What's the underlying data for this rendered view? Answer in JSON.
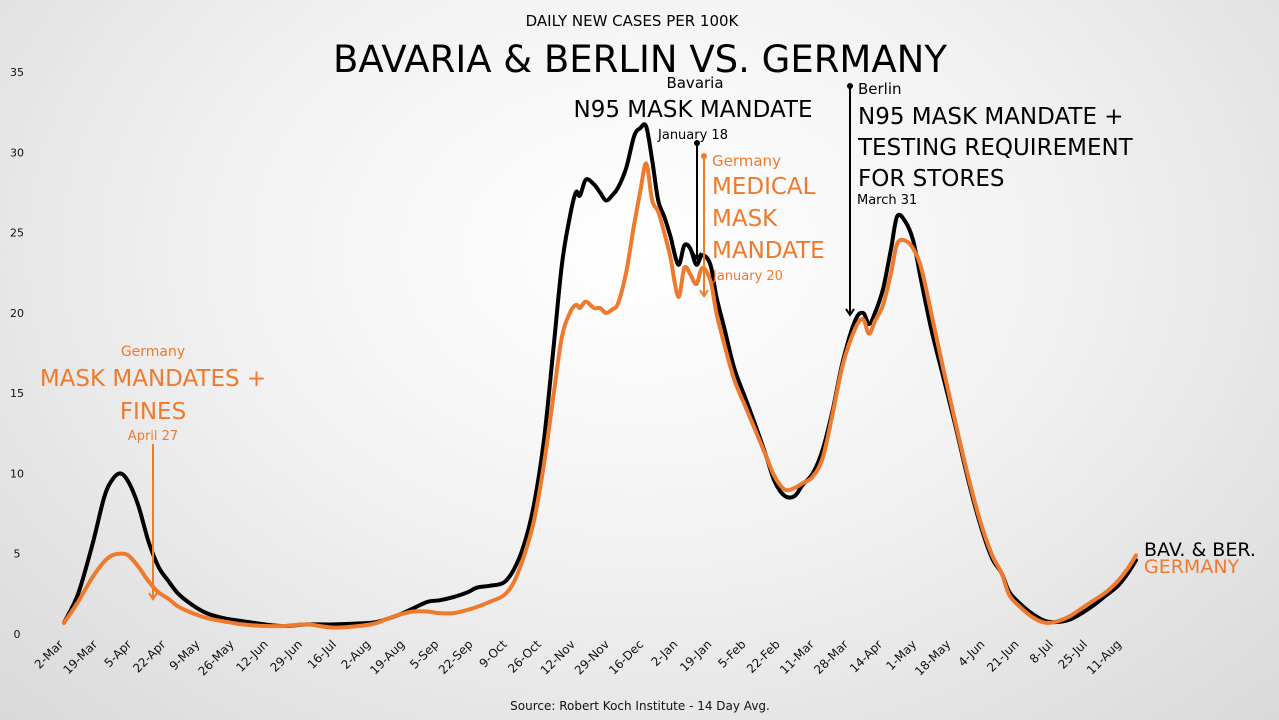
{
  "chart_data": {
    "type": "line",
    "subtitle": "DAILY NEW CASES PER 100K",
    "title": "BAVARIA & BERLIN VS. GERMANY",
    "source": "Source: Robert Koch Institute - 14 Day Avg.",
    "ylim": [
      0,
      35
    ],
    "yticks": [
      0,
      5,
      10,
      15,
      20,
      25,
      30,
      35
    ],
    "x_start": "2020-03-02",
    "x_end": "2021-08-18",
    "xticks": [
      {
        "date": "2020-03-02",
        "label": "2-Mar"
      },
      {
        "date": "2020-03-19",
        "label": "19-Mar"
      },
      {
        "date": "2020-04-05",
        "label": "5-Apr"
      },
      {
        "date": "2020-04-22",
        "label": "22-Apr"
      },
      {
        "date": "2020-05-09",
        "label": "9-May"
      },
      {
        "date": "2020-05-26",
        "label": "26-May"
      },
      {
        "date": "2020-06-12",
        "label": "12-Jun"
      },
      {
        "date": "2020-06-29",
        "label": "29-Jun"
      },
      {
        "date": "2020-07-16",
        "label": "16-Jul"
      },
      {
        "date": "2020-08-02",
        "label": "2-Aug"
      },
      {
        "date": "2020-08-19",
        "label": "19-Aug"
      },
      {
        "date": "2020-09-05",
        "label": "5-Sep"
      },
      {
        "date": "2020-09-22",
        "label": "22-Sep"
      },
      {
        "date": "2020-10-09",
        "label": "9-Oct"
      },
      {
        "date": "2020-10-26",
        "label": "26-Oct"
      },
      {
        "date": "2020-11-12",
        "label": "12-Nov"
      },
      {
        "date": "2020-11-29",
        "label": "29-Nov"
      },
      {
        "date": "2020-12-16",
        "label": "16-Dec"
      },
      {
        "date": "2021-01-02",
        "label": "2-Jan"
      },
      {
        "date": "2021-01-19",
        "label": "19-Jan"
      },
      {
        "date": "2021-02-05",
        "label": "5-Feb"
      },
      {
        "date": "2021-02-22",
        "label": "22-Feb"
      },
      {
        "date": "2021-03-11",
        "label": "11-Mar"
      },
      {
        "date": "2021-03-28",
        "label": "28-Mar"
      },
      {
        "date": "2021-04-14",
        "label": "14-Apr"
      },
      {
        "date": "2021-05-01",
        "label": "1-May"
      },
      {
        "date": "2021-05-18",
        "label": "18-May"
      },
      {
        "date": "2021-06-04",
        "label": "4-Jun"
      },
      {
        "date": "2021-06-21",
        "label": "21-Jun"
      },
      {
        "date": "2021-07-08",
        "label": "8-Jul"
      },
      {
        "date": "2021-07-25",
        "label": "25-Jul"
      },
      {
        "date": "2021-08-11",
        "label": "11-Aug"
      }
    ],
    "series": [
      {
        "name": "BAV. & BER.",
        "color": "#000000",
        "points": [
          [
            "2020-03-02",
            0.7
          ],
          [
            "2020-03-09",
            2.5
          ],
          [
            "2020-03-16",
            5.5
          ],
          [
            "2020-03-22",
            8.5
          ],
          [
            "2020-03-26",
            9.6
          ],
          [
            "2020-03-30",
            10.0
          ],
          [
            "2020-04-03",
            9.5
          ],
          [
            "2020-04-08",
            8.0
          ],
          [
            "2020-04-13",
            5.8
          ],
          [
            "2020-04-18",
            4.2
          ],
          [
            "2020-04-23",
            3.3
          ],
          [
            "2020-04-28",
            2.5
          ],
          [
            "2020-05-05",
            1.8
          ],
          [
            "2020-05-12",
            1.3
          ],
          [
            "2020-05-20",
            1.0
          ],
          [
            "2020-05-30",
            0.8
          ],
          [
            "2020-06-10",
            0.6
          ],
          [
            "2020-06-20",
            0.5
          ],
          [
            "2020-07-01",
            0.6
          ],
          [
            "2020-07-15",
            0.6
          ],
          [
            "2020-08-02",
            0.7
          ],
          [
            "2020-08-09",
            0.9
          ],
          [
            "2020-08-16",
            1.2
          ],
          [
            "2020-08-23",
            1.6
          ],
          [
            "2020-08-30",
            2.0
          ],
          [
            "2020-09-05",
            2.1
          ],
          [
            "2020-09-12",
            2.3
          ],
          [
            "2020-09-19",
            2.6
          ],
          [
            "2020-09-24",
            2.9
          ],
          [
            "2020-09-30",
            3.0
          ],
          [
            "2020-10-07",
            3.2
          ],
          [
            "2020-10-12",
            4.0
          ],
          [
            "2020-10-17",
            5.5
          ],
          [
            "2020-10-22",
            8.0
          ],
          [
            "2020-10-27",
            12.0
          ],
          [
            "2020-11-01",
            18.0
          ],
          [
            "2020-11-05",
            23.0
          ],
          [
            "2020-11-09",
            26.0
          ],
          [
            "2020-11-12",
            27.5
          ],
          [
            "2020-11-14",
            27.3
          ],
          [
            "2020-11-17",
            28.3
          ],
          [
            "2020-11-21",
            28.0
          ],
          [
            "2020-11-24",
            27.5
          ],
          [
            "2020-11-27",
            27.0
          ],
          [
            "2020-11-30",
            27.3
          ],
          [
            "2020-12-03",
            27.8
          ],
          [
            "2020-12-07",
            29.0
          ],
          [
            "2020-12-11",
            31.0
          ],
          [
            "2020-12-14",
            31.5
          ],
          [
            "2020-12-17",
            31.6
          ],
          [
            "2020-12-20",
            29.5
          ],
          [
            "2020-12-23",
            27.0
          ],
          [
            "2020-12-26",
            26.0
          ],
          [
            "2020-12-29",
            24.8
          ],
          [
            "2021-01-02",
            23.0
          ],
          [
            "2021-01-05",
            24.2
          ],
          [
            "2021-01-08",
            24.0
          ],
          [
            "2021-01-11",
            23.0
          ],
          [
            "2021-01-14",
            23.6
          ],
          [
            "2021-01-18",
            23.0
          ],
          [
            "2021-01-21",
            21.0
          ],
          [
            "2021-01-25",
            19.0
          ],
          [
            "2021-01-30",
            16.5
          ],
          [
            "2021-02-05",
            14.5
          ],
          [
            "2021-02-10",
            12.8
          ],
          [
            "2021-02-15",
            11.0
          ],
          [
            "2021-02-19",
            9.5
          ],
          [
            "2021-02-24",
            8.6
          ],
          [
            "2021-03-01",
            8.6
          ],
          [
            "2021-03-05",
            9.3
          ],
          [
            "2021-03-10",
            10.0
          ],
          [
            "2021-03-15",
            11.5
          ],
          [
            "2021-03-20",
            14.0
          ],
          [
            "2021-03-25",
            17.0
          ],
          [
            "2021-03-31",
            19.5
          ],
          [
            "2021-04-04",
            20.0
          ],
          [
            "2021-04-07",
            19.3
          ],
          [
            "2021-04-10",
            20.0
          ],
          [
            "2021-04-14",
            21.5
          ],
          [
            "2021-04-18",
            24.0
          ],
          [
            "2021-04-21",
            26.0
          ],
          [
            "2021-04-25",
            25.7
          ],
          [
            "2021-04-29",
            24.5
          ],
          [
            "2021-05-03",
            22.0
          ],
          [
            "2021-05-08",
            19.0
          ],
          [
            "2021-05-14",
            16.0
          ],
          [
            "2021-05-20",
            13.0
          ],
          [
            "2021-05-26",
            9.8
          ],
          [
            "2021-06-01",
            7.0
          ],
          [
            "2021-06-07",
            4.8
          ],
          [
            "2021-06-12",
            3.8
          ],
          [
            "2021-06-16",
            2.6
          ],
          [
            "2021-06-22",
            1.8
          ],
          [
            "2021-06-28",
            1.2
          ],
          [
            "2021-07-04",
            0.8
          ],
          [
            "2021-07-10",
            0.75
          ],
          [
            "2021-07-16",
            0.9
          ],
          [
            "2021-07-22",
            1.3
          ],
          [
            "2021-07-28",
            1.8
          ],
          [
            "2021-08-03",
            2.4
          ],
          [
            "2021-08-09",
            3.0
          ],
          [
            "2021-08-14",
            3.8
          ],
          [
            "2021-08-18",
            4.6
          ]
        ]
      },
      {
        "name": "GERMANY",
        "color": "#ee7a2e",
        "points": [
          [
            "2020-03-02",
            0.7
          ],
          [
            "2020-03-09",
            2.0
          ],
          [
            "2020-03-16",
            3.5
          ],
          [
            "2020-03-22",
            4.5
          ],
          [
            "2020-03-26",
            4.9
          ],
          [
            "2020-03-30",
            5.0
          ],
          [
            "2020-04-03",
            4.9
          ],
          [
            "2020-04-08",
            4.2
          ],
          [
            "2020-04-13",
            3.3
          ],
          [
            "2020-04-18",
            2.6
          ],
          [
            "2020-04-23",
            2.2
          ],
          [
            "2020-04-28",
            1.7
          ],
          [
            "2020-05-05",
            1.3
          ],
          [
            "2020-05-12",
            1.0
          ],
          [
            "2020-05-20",
            0.8
          ],
          [
            "2020-05-30",
            0.6
          ],
          [
            "2020-06-10",
            0.5
          ],
          [
            "2020-06-20",
            0.5
          ],
          [
            "2020-07-01",
            0.6
          ],
          [
            "2020-07-15",
            0.4
          ],
          [
            "2020-08-02",
            0.6
          ],
          [
            "2020-08-09",
            0.9
          ],
          [
            "2020-08-16",
            1.2
          ],
          [
            "2020-08-23",
            1.4
          ],
          [
            "2020-08-30",
            1.4
          ],
          [
            "2020-09-05",
            1.3
          ],
          [
            "2020-09-12",
            1.3
          ],
          [
            "2020-09-19",
            1.5
          ],
          [
            "2020-09-24",
            1.7
          ],
          [
            "2020-09-30",
            2.0
          ],
          [
            "2020-10-07",
            2.4
          ],
          [
            "2020-10-12",
            3.2
          ],
          [
            "2020-10-17",
            4.8
          ],
          [
            "2020-10-22",
            7.0
          ],
          [
            "2020-10-27",
            10.5
          ],
          [
            "2020-11-01",
            15.0
          ],
          [
            "2020-11-05",
            18.5
          ],
          [
            "2020-11-09",
            20.0
          ],
          [
            "2020-11-12",
            20.5
          ],
          [
            "2020-11-14",
            20.3
          ],
          [
            "2020-11-17",
            20.7
          ],
          [
            "2020-11-21",
            20.3
          ],
          [
            "2020-11-24",
            20.3
          ],
          [
            "2020-11-27",
            20.0
          ],
          [
            "2020-11-30",
            20.2
          ],
          [
            "2020-12-03",
            20.6
          ],
          [
            "2020-12-07",
            22.5
          ],
          [
            "2020-12-11",
            25.5
          ],
          [
            "2020-12-14",
            27.5
          ],
          [
            "2020-12-17",
            29.3
          ],
          [
            "2020-12-20",
            27.0
          ],
          [
            "2020-12-23",
            26.3
          ],
          [
            "2020-12-26",
            25.0
          ],
          [
            "2020-12-29",
            23.5
          ],
          [
            "2021-01-02",
            21.0
          ],
          [
            "2021-01-05",
            22.8
          ],
          [
            "2021-01-08",
            22.4
          ],
          [
            "2021-01-11",
            21.8
          ],
          [
            "2021-01-14",
            22.8
          ],
          [
            "2021-01-18",
            22.0
          ],
          [
            "2021-01-21",
            20.0
          ],
          [
            "2021-01-25",
            18.0
          ],
          [
            "2021-01-30",
            15.8
          ],
          [
            "2021-02-05",
            14.0
          ],
          [
            "2021-02-10",
            12.5
          ],
          [
            "2021-02-15",
            11.0
          ],
          [
            "2021-02-19",
            9.8
          ],
          [
            "2021-02-24",
            9.0
          ],
          [
            "2021-03-01",
            9.1
          ],
          [
            "2021-03-05",
            9.4
          ],
          [
            "2021-03-10",
            9.8
          ],
          [
            "2021-03-15",
            11.0
          ],
          [
            "2021-03-20",
            13.8
          ],
          [
            "2021-03-25",
            16.8
          ],
          [
            "2021-03-31",
            19.0
          ],
          [
            "2021-04-04",
            19.6
          ],
          [
            "2021-04-07",
            18.7
          ],
          [
            "2021-04-10",
            19.5
          ],
          [
            "2021-04-14",
            20.5
          ],
          [
            "2021-04-18",
            22.5
          ],
          [
            "2021-04-21",
            24.3
          ],
          [
            "2021-04-25",
            24.5
          ],
          [
            "2021-04-29",
            24.0
          ],
          [
            "2021-05-03",
            22.8
          ],
          [
            "2021-05-08",
            20.0
          ],
          [
            "2021-05-14",
            16.5
          ],
          [
            "2021-05-20",
            13.2
          ],
          [
            "2021-05-26",
            10.0
          ],
          [
            "2021-06-01",
            7.2
          ],
          [
            "2021-06-07",
            5.0
          ],
          [
            "2021-06-12",
            3.8
          ],
          [
            "2021-06-16",
            2.4
          ],
          [
            "2021-06-22",
            1.6
          ],
          [
            "2021-06-28",
            1.0
          ],
          [
            "2021-07-04",
            0.7
          ],
          [
            "2021-07-10",
            0.8
          ],
          [
            "2021-07-16",
            1.1
          ],
          [
            "2021-07-22",
            1.6
          ],
          [
            "2021-07-28",
            2.1
          ],
          [
            "2021-08-03",
            2.6
          ],
          [
            "2021-08-09",
            3.3
          ],
          [
            "2021-08-14",
            4.1
          ],
          [
            "2021-08-18",
            4.9
          ]
        ]
      }
    ],
    "annotations": [
      {
        "region": "Germany",
        "text": [
          "MASK MANDATES +",
          "FINES"
        ],
        "date_label": "April 27",
        "date": "2020-04-27",
        "color": "#ee7a2e"
      },
      {
        "region": "Bavaria",
        "text": [
          "N95 MASK MANDATE"
        ],
        "date_label": "January 18",
        "date": "2021-01-18",
        "color": "#000000"
      },
      {
        "region": "Germany",
        "text": [
          "MEDICAL",
          "MASK",
          "MANDATE"
        ],
        "date_label": "January 20",
        "date": "2021-01-20",
        "color": "#ee7a2e"
      },
      {
        "region": "Berlin",
        "text": [
          "N95 MASK MANDATE +",
          "TESTING REQUIREMENT",
          "FOR STORES"
        ],
        "date_label": "March 31",
        "date": "2021-03-31",
        "color": "#000000"
      }
    ]
  }
}
